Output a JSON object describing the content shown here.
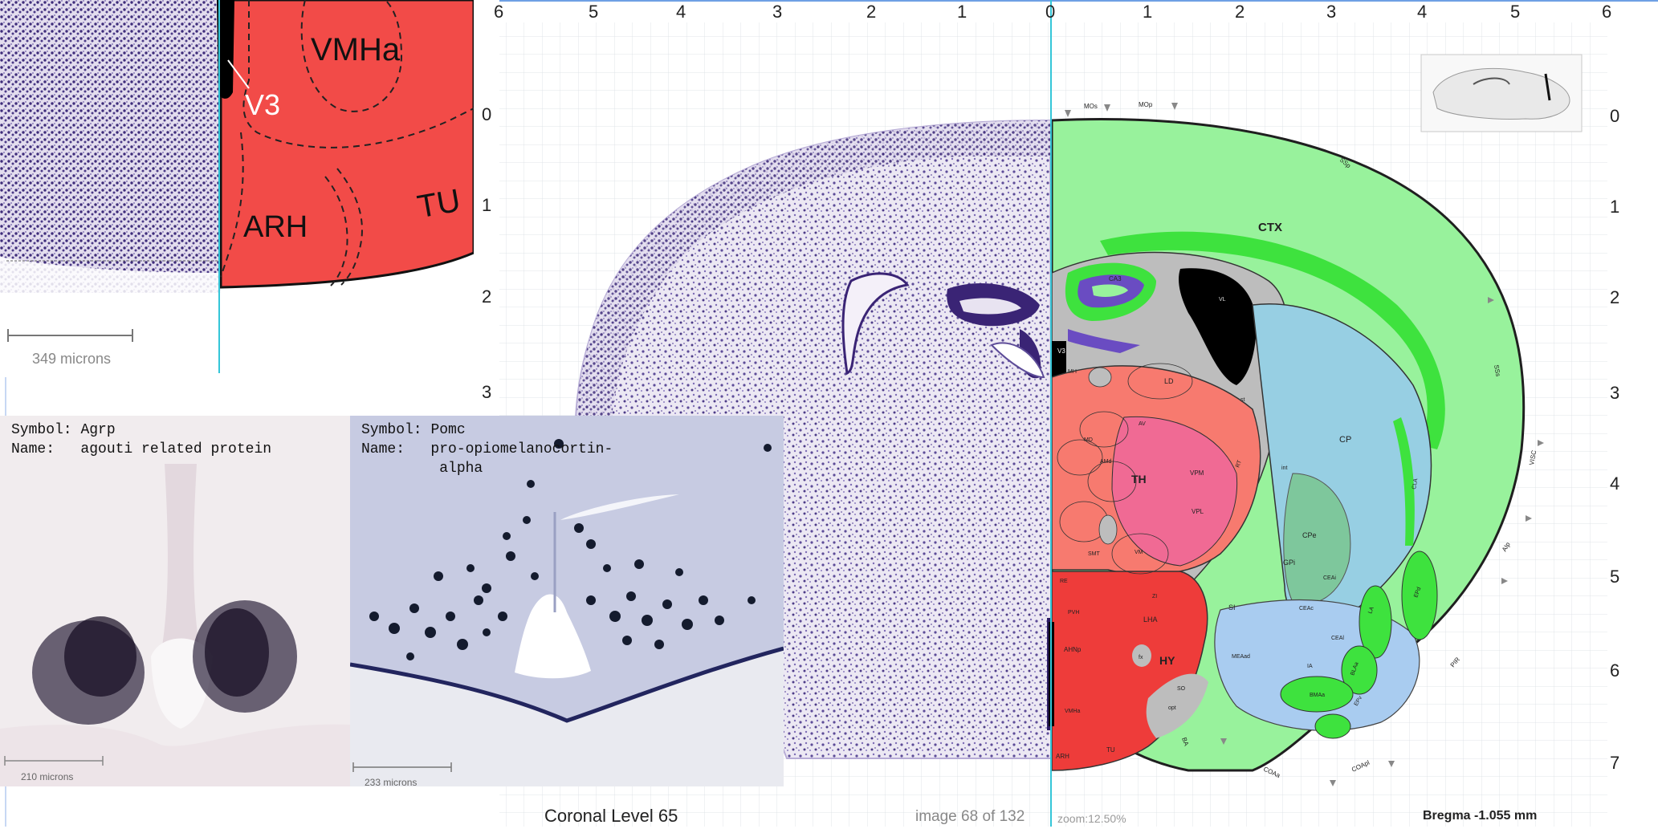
{
  "inset_top": {
    "labels": {
      "vmha": "VMHa",
      "v3": "V3",
      "arh": "ARH",
      "tu": "TU"
    },
    "scale_bar": "349 microns"
  },
  "ish_agrp": {
    "symbol_label": "Symbol:",
    "symbol_value": "Agrp",
    "name_label": "Name:",
    "name_value": "agouti related protein",
    "scale_bar": "210 microns"
  },
  "ish_pomc": {
    "symbol_label": "Symbol:",
    "symbol_value": "Pomc",
    "name_label": "Name:",
    "name_value_line1": "pro-opiomelanocortin-",
    "name_value_line2": "alpha",
    "scale_bar": "233 microns"
  },
  "axes": {
    "top_ticks": [
      "6",
      "5",
      "4",
      "3",
      "2",
      "1",
      "0",
      "1",
      "2",
      "3",
      "4",
      "5",
      "6"
    ],
    "left_ticks": [
      "0",
      "1",
      "2",
      "3"
    ],
    "right_ticks": [
      "0",
      "1",
      "2",
      "3",
      "4",
      "5",
      "6",
      "7"
    ]
  },
  "atlas_labels": {
    "ctx": "CTX",
    "th": "TH",
    "hy": "HY",
    "cp": "CP",
    "ld": "LD",
    "cpe": "CPe",
    "gpi": "GPi",
    "si": "SI",
    "lha": "LHA",
    "vl": "VL",
    "vpm": "VPM",
    "vpl": "VPL",
    "ca3": "CA3",
    "v3": "V3",
    "arh": "ARH",
    "tu": "TU",
    "ahn": "AHNp",
    "vmha": "VMHa",
    "moS": "MOs",
    "moP": "MOp",
    "ssp": "SSp",
    "sss": "SSs",
    "visc": "VISC",
    "aip": "AIp",
    "pir": "PIR",
    "coaa": "COAa",
    "coap": "COApl",
    "ba": "BA",
    "ceai": "CEAi",
    "cea": "CEAc",
    "ceal": "CEAl",
    "la": "LA",
    "bla": "BLAa",
    "epd": "EPd",
    "epv": "EPv",
    "mea": "MEAad",
    "ia": "IA",
    "bma": "BMAa",
    "cla": "CLA",
    "opt": "opt",
    "so": "SO",
    "fx": "fx",
    "rt": "RT",
    "mh": "MH",
    "md": "MD",
    "smt": "SMT",
    "vm": "VM",
    "re": "RE",
    "zi": "ZI",
    "av": "AV",
    "am": "AMd",
    "pvh": "PVH",
    "int": "int",
    "st": "st"
  },
  "footer": {
    "coronal_level": "Coronal Level 65",
    "image_counter": "image 68 of 132",
    "zoom": "zoom:12.50%",
    "bregma": "Bregma -1.055 mm"
  },
  "colors": {
    "cortex_green": "#98f29c",
    "bright_green": "#3ee23e",
    "thalamus_salmon": "#f77a6f",
    "thalamus_pink": "#f06a94",
    "hypothalamus_red": "#ee3c3a",
    "striatum_blue": "#97cfe3",
    "pallidum_teal": "#7ec79c",
    "fiber_gray": "#bdbdbd",
    "ventricle_black": "#000000",
    "hippocampus_purple": "#6a4cc2",
    "nissl_purple": "#5c4a9a",
    "inset_red": "#f24b48",
    "guide_cyan": "#35c6d8"
  }
}
